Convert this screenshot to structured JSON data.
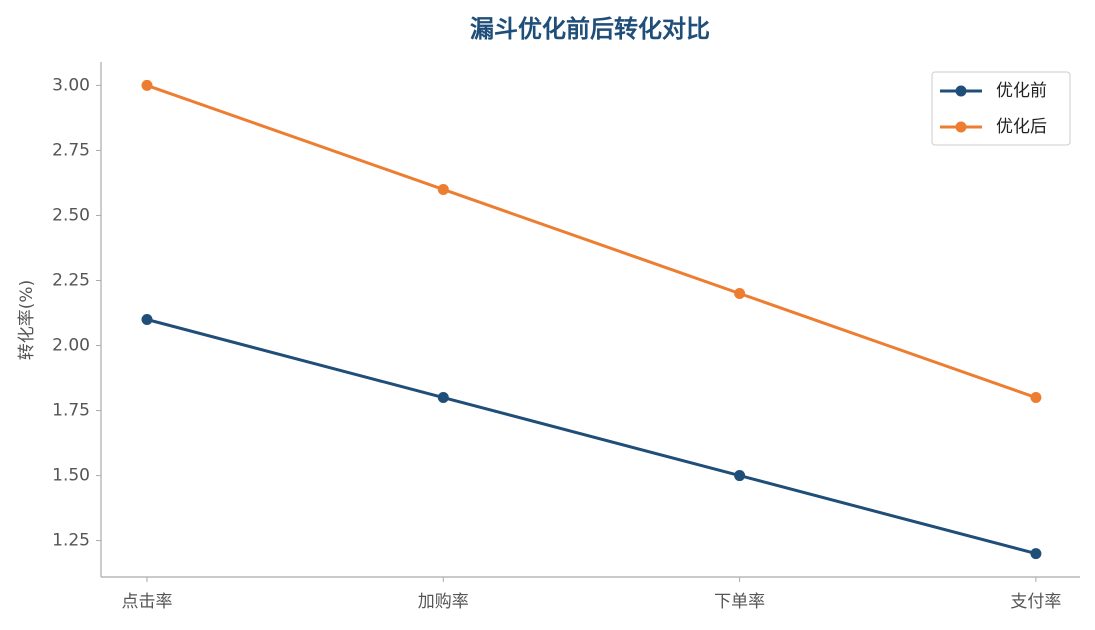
{
  "chart_data": {
    "type": "line",
    "title": "漏斗优化前后转化对比",
    "y_label": "转化率(%)",
    "categories": [
      "点击率",
      "加购率",
      "下单率",
      "支付率"
    ],
    "series": [
      {
        "name": "优化前",
        "color": "#1f4e79",
        "values": [
          2.1,
          1.8,
          1.5,
          1.2
        ]
      },
      {
        "name": "优化后",
        "color": "#ed7d31",
        "values": [
          3.0,
          2.6,
          2.2,
          1.8
        ]
      }
    ],
    "ylim": [
      1.11,
      3.09
    ],
    "yticks": [
      1.25,
      {
        "value": 1.5,
        "label": "1.50"
      },
      1.75,
      {
        "value": 2,
        "label": "2.00"
      },
      2.25,
      {
        "value": 2.5,
        "label": "2.50"
      },
      2.75,
      {
        "value": 3,
        "label": "3.00"
      }
    ],
    "legend": "upper right"
  }
}
